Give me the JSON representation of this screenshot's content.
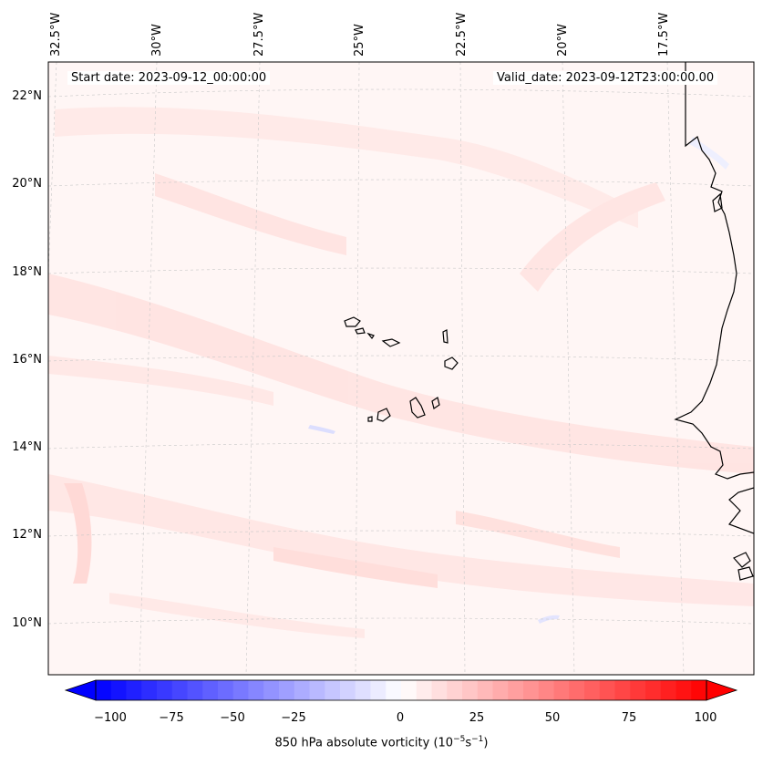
{
  "map": {
    "start_date": "Start date: 2023-09-12_00:00:00",
    "valid_date": "Valid_date: 2023-09-12T23:00:00.00",
    "lon_labels": [
      "32.5°W",
      "30°W",
      "27.5°W",
      "25°W",
      "22.5°W",
      "20°W",
      "17.5°W"
    ],
    "lat_labels": [
      "22°N",
      "20°N",
      "18°N",
      "16°N",
      "14°N",
      "12°N",
      "10°N"
    ],
    "extent": {
      "lon_min": -33.5,
      "lon_max": -16.6,
      "lat_min": 8.9,
      "lat_max": 22.7
    },
    "colormap": {
      "neg": "#0000ff",
      "mid": "#ffffff",
      "pos": "#ff0000"
    }
  },
  "colorbar": {
    "ticks": [
      "−100",
      "−75",
      "−50",
      "−25",
      "0",
      "25",
      "50",
      "75",
      "100"
    ],
    "min": -100,
    "max": 100,
    "step": 5,
    "label": "850 hPa absolute vorticity (10",
    "label_exp1": "−5",
    "label_mid": "s",
    "label_exp2": "−1",
    "label_end": ")"
  }
}
